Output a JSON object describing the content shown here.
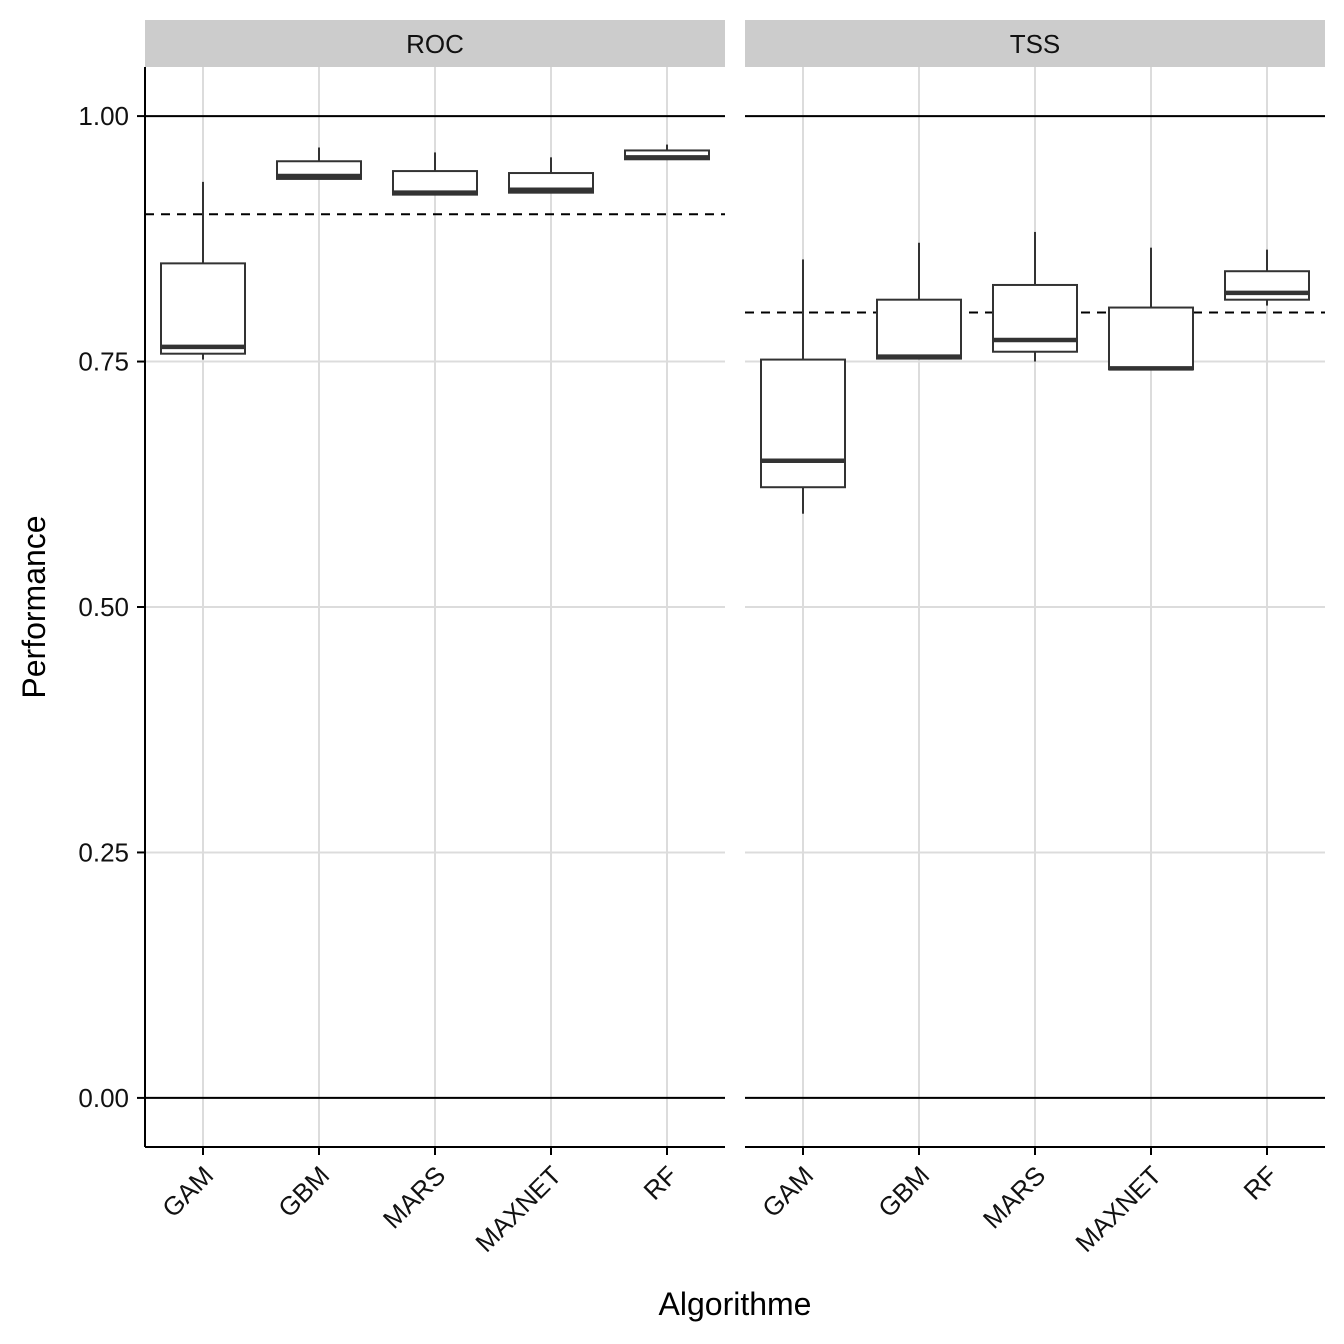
{
  "chart_data": {
    "type": "boxplot",
    "xlabel": "Algorithme",
    "ylabel": "Performance",
    "ylim": [
      -0.05,
      1.05
    ],
    "yticks": [
      0.0,
      0.25,
      0.5,
      0.75,
      1.0
    ],
    "ytick_labels": [
      "0.00",
      "0.25",
      "0.50",
      "0.75",
      "1.00"
    ],
    "categories": [
      "GAM",
      "GBM",
      "MARS",
      "MAXNET",
      "RF"
    ],
    "reference_lines": [
      0,
      1
    ],
    "grid": true,
    "panels": [
      {
        "name": "ROC",
        "threshold": 0.9,
        "boxes": [
          {
            "category": "GAM",
            "min": 0.752,
            "q1": 0.758,
            "median": 0.765,
            "q3": 0.85,
            "max": 0.933
          },
          {
            "category": "GBM",
            "min": 0.936,
            "q1": 0.936,
            "median": 0.939,
            "q3": 0.954,
            "max": 0.968
          },
          {
            "category": "MARS",
            "min": 0.92,
            "q1": 0.92,
            "median": 0.922,
            "q3": 0.944,
            "max": 0.963
          },
          {
            "category": "MAXNET",
            "min": 0.922,
            "q1": 0.922,
            "median": 0.925,
            "q3": 0.942,
            "max": 0.958
          },
          {
            "category": "RF",
            "min": 0.956,
            "q1": 0.956,
            "median": 0.958,
            "q3": 0.965,
            "max": 0.971
          }
        ]
      },
      {
        "name": "TSS",
        "threshold": 0.8,
        "boxes": [
          {
            "category": "GAM",
            "min": 0.595,
            "q1": 0.622,
            "median": 0.649,
            "q3": 0.752,
            "max": 0.854
          },
          {
            "category": "GBM",
            "min": 0.753,
            "q1": 0.753,
            "median": 0.755,
            "q3": 0.813,
            "max": 0.871
          },
          {
            "category": "MARS",
            "min": 0.75,
            "q1": 0.76,
            "median": 0.772,
            "q3": 0.828,
            "max": 0.882
          },
          {
            "category": "MAXNET",
            "min": 0.742,
            "q1": 0.742,
            "median": 0.743,
            "q3": 0.805,
            "max": 0.866
          },
          {
            "category": "RF",
            "min": 0.807,
            "q1": 0.813,
            "median": 0.82,
            "q3": 0.842,
            "max": 0.864
          }
        ]
      }
    ]
  }
}
